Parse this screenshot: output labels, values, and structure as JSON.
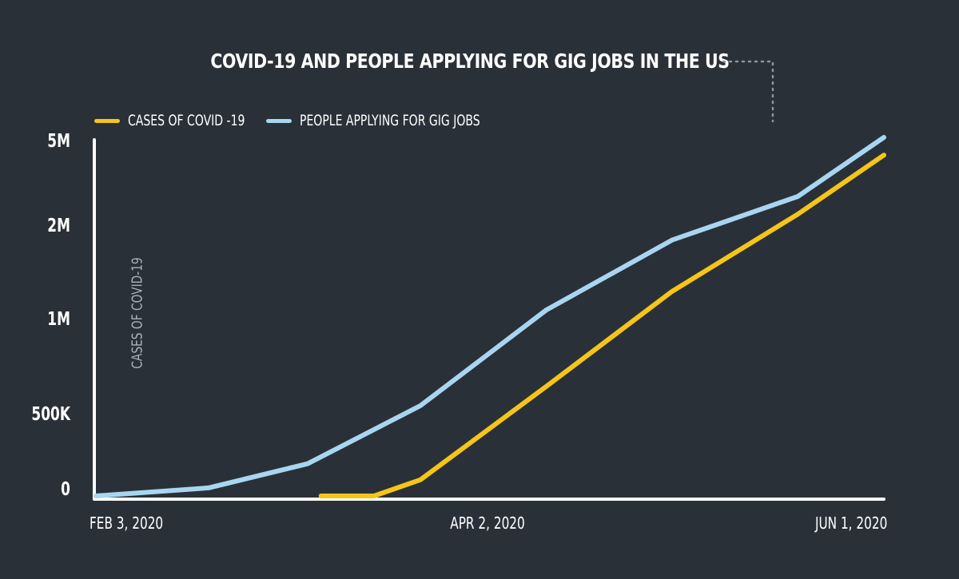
{
  "chart_data": {
    "type": "line",
    "title": "COVID-19 AND PEOPLE APPLYING FOR GIG JOBS IN THE US",
    "ylabel": "CASES OF COVID-19",
    "xlabel": "",
    "y_ticks": [
      "5M",
      "2M",
      "1M",
      "500K",
      "0"
    ],
    "x_ticks": [
      "FEB 3, 2020",
      "APR 2, 2020",
      "JUN 1, 2020"
    ],
    "legend_position": "top-left",
    "grid": false,
    "series": [
      {
        "name": "CASES OF COVID -19",
        "color": "#f5c518",
        "points": [
          {
            "x": "2020-03-08",
            "y": 0
          },
          {
            "x": "2020-03-16",
            "y": 0
          },
          {
            "x": "2020-03-23",
            "y": 100000
          },
          {
            "x": "2020-04-11",
            "y": 650000
          },
          {
            "x": "2020-04-30",
            "y": 1300000
          },
          {
            "x": "2020-05-19",
            "y": 2400000
          },
          {
            "x": "2020-06-01",
            "y": 4400000
          }
        ]
      },
      {
        "name": "PEOPLE APPLYING FOR GIG JOBS",
        "color": "#a8d6f0",
        "points": [
          {
            "x": "2020-02-03",
            "y": 0
          },
          {
            "x": "2020-02-20",
            "y": 50000
          },
          {
            "x": "2020-03-06",
            "y": 200000
          },
          {
            "x": "2020-03-23",
            "y": 550000
          },
          {
            "x": "2020-04-11",
            "y": 1100000
          },
          {
            "x": "2020-04-30",
            "y": 1850000
          },
          {
            "x": "2020-05-19",
            "y": 3000000
          },
          {
            "x": "2020-06-01",
            "y": 5000000
          }
        ]
      }
    ]
  }
}
